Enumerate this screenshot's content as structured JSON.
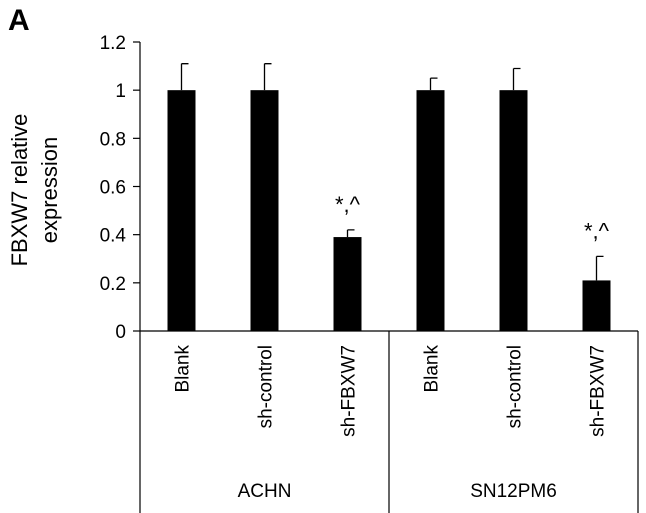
{
  "chart_data": {
    "type": "bar",
    "panel_label": "A",
    "ylabel_lines": [
      "FBXW7 relative",
      "expression"
    ],
    "color": "#000000",
    "ylim": [
      0,
      1.2
    ],
    "yticks": [
      0,
      0.2,
      0.4,
      0.6,
      0.8,
      1,
      1.2
    ],
    "groups": [
      {
        "name": "ACHN",
        "categories": [
          "Blank",
          "sh-control",
          "sh-FBXW7"
        ],
        "values": [
          1,
          1,
          0.39
        ],
        "errors": [
          0.11,
          0.11,
          0.03
        ],
        "annotations": [
          null,
          null,
          "*,^"
        ]
      },
      {
        "name": "SN12PM6",
        "categories": [
          "Blank",
          "sh-control",
          "sh-FBXW7"
        ],
        "values": [
          1,
          1,
          0.21
        ],
        "errors": [
          0.05,
          0.09,
          0.1
        ],
        "annotations": [
          null,
          null,
          "*,^"
        ]
      }
    ]
  }
}
